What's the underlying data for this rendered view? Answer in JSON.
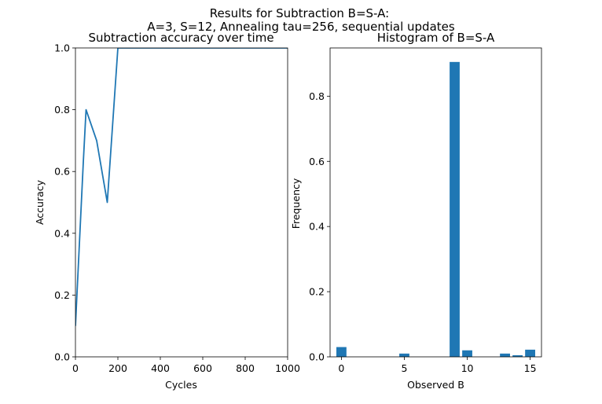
{
  "figure": {
    "suptitle_line1": "Results for Subtraction B=S-A:",
    "suptitle_line2": "A=3, S=12, Annealing tau=256, sequential updates"
  },
  "colors": {
    "series": "#1f77b4",
    "axes": "#000000",
    "background": "#ffffff"
  },
  "chart_data": [
    {
      "type": "line",
      "title": "Subtraction accuracy over time",
      "xlabel": "Cycles",
      "ylabel": "Accuracy",
      "xlim": [
        0,
        1000
      ],
      "ylim": [
        0,
        1.0
      ],
      "xticks": [
        0,
        200,
        400,
        600,
        800,
        1000
      ],
      "yticks": [
        0.0,
        0.2,
        0.4,
        0.6,
        0.8,
        1.0
      ],
      "xtick_labels": [
        "0",
        "200",
        "400",
        "600",
        "800",
        "1000"
      ],
      "ytick_labels": [
        "0.0",
        "0.2",
        "0.4",
        "0.6",
        "0.8",
        "1.0"
      ],
      "grid": false,
      "series": [
        {
          "x": [
            0,
            37,
            50,
            100,
            150,
            200,
            250,
            300,
            350,
            400,
            450,
            500,
            550,
            600,
            650,
            700,
            750,
            800,
            850,
            900,
            950,
            1000
          ],
          "y": [
            0.1,
            0.63,
            0.8,
            0.7,
            0.5,
            1.0,
            1.0,
            1.0,
            1.0,
            1.0,
            1.0,
            1.0,
            1.0,
            1.0,
            1.0,
            1.0,
            1.0,
            1.0,
            1.0,
            1.0,
            1.0,
            1.0
          ]
        }
      ]
    },
    {
      "type": "bar",
      "title": "Histogram of B=S-A",
      "xlabel": "Observed B",
      "ylabel": "Frequency",
      "xlim": [
        -0.9,
        15.9
      ],
      "ylim": [
        0,
        0.948
      ],
      "xticks": [
        0,
        5,
        10,
        15
      ],
      "yticks": [
        0.0,
        0.2,
        0.4,
        0.6,
        0.8
      ],
      "xtick_labels": [
        "0",
        "5",
        "10",
        "15"
      ],
      "ytick_labels": [
        "0.0",
        "0.2",
        "0.4",
        "0.6",
        "0.8"
      ],
      "grid": false,
      "bar_width": 0.8,
      "x": [
        0,
        5,
        9,
        10,
        13,
        14,
        15
      ],
      "values": [
        0.03,
        0.01,
        0.905,
        0.02,
        0.01,
        0.005,
        0.022
      ]
    }
  ]
}
